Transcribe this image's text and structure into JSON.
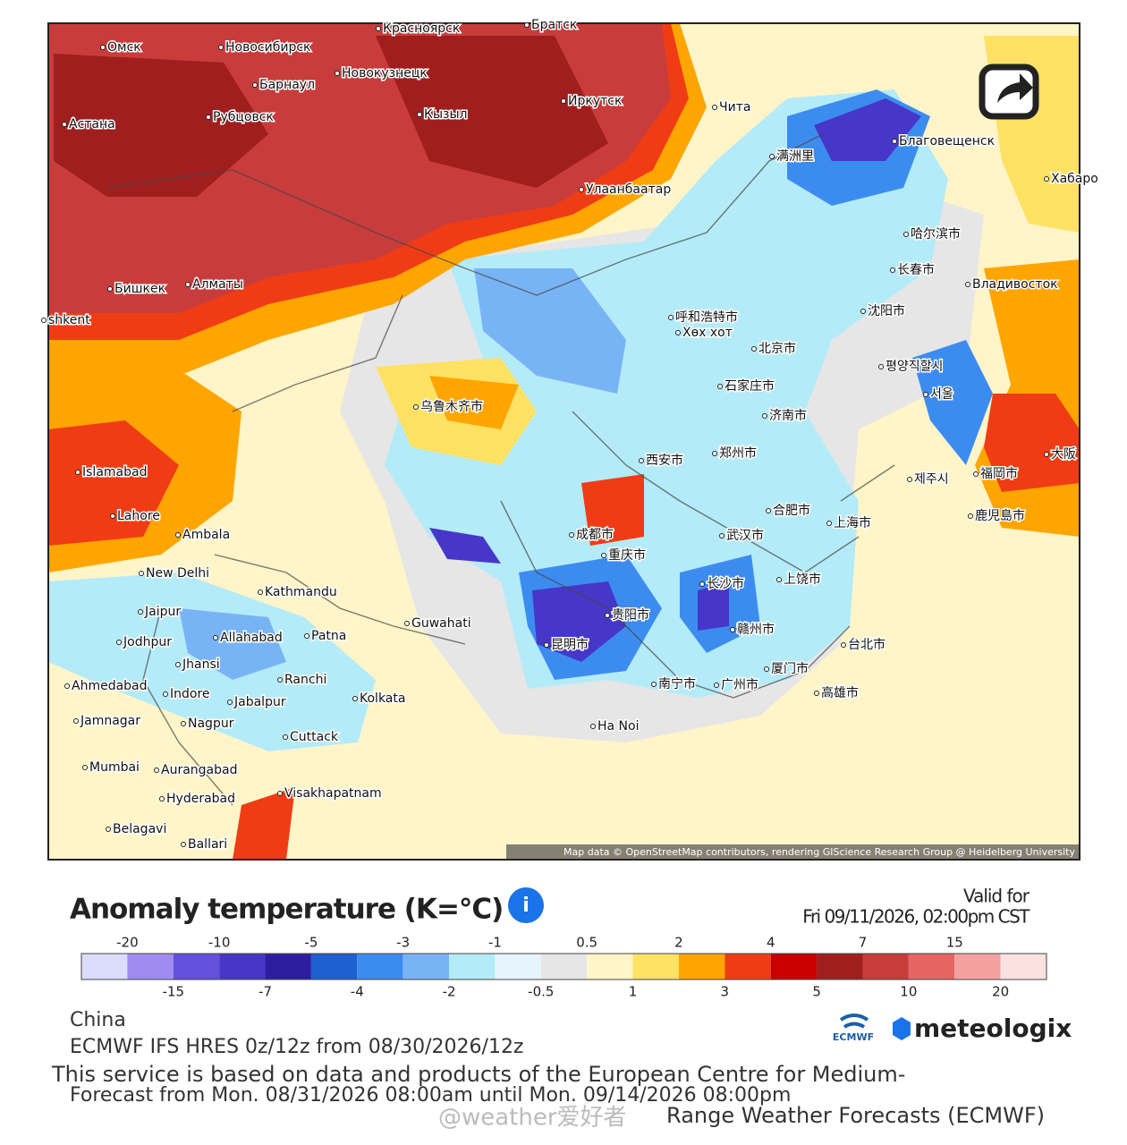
{
  "map": {
    "labels": [
      "Омск",
      "Новосибирск",
      "Красноярск",
      "Братск",
      "Барнаул",
      "Новокузнецк",
      "Иркутск",
      "Чита",
      "Рубцовск",
      "Кызыл",
      "Астана",
      "Улаанбаатар",
      "Благовещенск",
      "Хабаро",
      "满洲里",
      "哈尔滨市",
      "长春市",
      "Владивосток",
      "Бишкек",
      "Алматы",
      "呼和浩特市",
      "Хөх хот",
      "北京市",
      "沈阳市",
      "평양직할시",
      "서울",
      "石家庄市",
      "济南市",
      "乌鲁木齐市",
      "shkent",
      "郑州市",
      "西安市",
      "Islamabad",
      "제주시",
      "福岡市",
      "鹿児島市",
      "大阪",
      "合肥市",
      "上海市",
      "武汉市",
      "成都市",
      "重庆市",
      "Lahore",
      "Ambala",
      "New Delhi",
      "Kathmandu",
      "长沙市",
      "上饶市",
      "Guwahati",
      "Jaipur",
      "Jodhpur",
      "Allahabad",
      "Patna",
      "贵阳市",
      "昆明市",
      "赣州市",
      "台北市",
      "Jhansi",
      "Ranchi",
      "广州市",
      "南宁市",
      "厦门市",
      "高雄市",
      "Ahmedabad",
      "Indore",
      "Jabalpur",
      "Kolkata",
      "Jamnagar",
      "Nagpur",
      "Ha Noi",
      "Cuttack",
      "Mumbai",
      "Aurangabad",
      "Visakhapatnam",
      "Hyderabad",
      "Belagavi",
      "Ballari"
    ],
    "attribution": "Map data © OpenStreetMap contributors, rendering GIScience Research Group @ Heidelberg University"
  },
  "legend": {
    "title": "Anomaly temperature (K=°C)",
    "valid_for": "Valid for",
    "valid_time": "Fri 09/11/2026, 02:00pm CST",
    "top_labels": [
      "-20",
      "-10",
      "-5",
      "-3",
      "-1",
      "0.5",
      "2",
      "4",
      "7",
      "15"
    ],
    "bottom_labels": [
      "-15",
      "-7",
      "-4",
      "-2",
      "-0.5",
      "1",
      "3",
      "5",
      "10",
      "20"
    ],
    "colors": [
      "#dcdcfc",
      "#a08cf0",
      "#6450dc",
      "#4637c8",
      "#2d1ea0",
      "#1e5fd2",
      "#3c8cf0",
      "#78b4f5",
      "#b4ebf8",
      "#e6f5fc",
      "#e6e6e6",
      "#fff5c8",
      "#ffe164",
      "#ffa500",
      "#f03c14",
      "#c80000",
      "#a01e1e",
      "#c83c3c",
      "#e66464",
      "#f5a0a0",
      "#fce1e1"
    ]
  },
  "footer": {
    "region": "China",
    "model": "ECMWF IFS HRES 0z/12z from 08/30/2026/12z",
    "service": "This service is based on data and products of the European Centre for Medium-",
    "forecast": "Forecast from Mon. 08/31/2026 08:00am until Mon. 09/14/2026 08:00pm",
    "service_end": "Range Weather Forecasts (ECMWF)",
    "watermark": "@weather爱好者",
    "ecmwf_logo": "ECMWF",
    "brand": "meteologix"
  }
}
